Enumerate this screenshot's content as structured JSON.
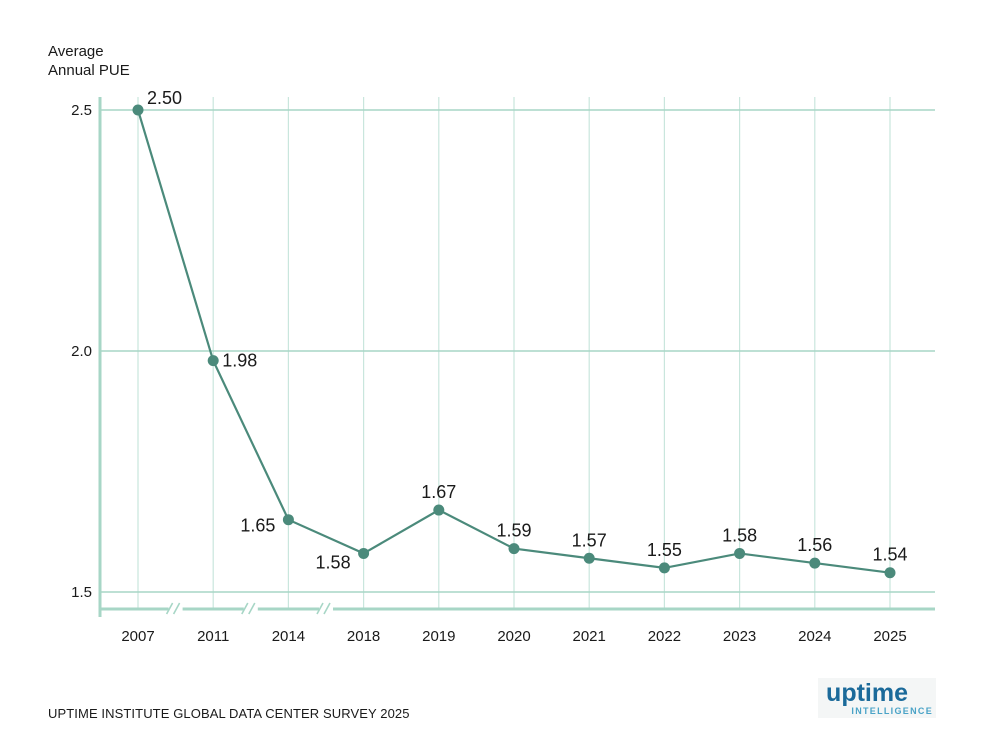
{
  "chart_data": {
    "type": "line",
    "title": "",
    "ylabel": "Average Annual PUE",
    "xlabel": "",
    "categories": [
      "2007",
      "2011",
      "2014",
      "2018",
      "2019",
      "2020",
      "2021",
      "2022",
      "2023",
      "2024",
      "2025"
    ],
    "values": [
      2.5,
      1.98,
      1.65,
      1.58,
      1.67,
      1.59,
      1.57,
      1.55,
      1.58,
      1.56,
      1.54
    ],
    "value_labels": [
      "2.50",
      "1.98",
      "1.65",
      "1.58",
      "1.67",
      "1.59",
      "1.57",
      "1.55",
      "1.58",
      "1.56",
      "1.54"
    ],
    "yticks": [
      "2.5",
      "2.0",
      "1.5"
    ],
    "ylim": [
      1.5,
      2.5
    ],
    "axis_breaks_after": [
      "2007",
      "2011",
      "2014"
    ],
    "grid": true,
    "colors": {
      "line": "#4b8a7b",
      "grid": "#c9e6dd",
      "axis": "#a7d6c6"
    }
  },
  "footer": {
    "source": "UPTIME INSTITUTE GLOBAL DATA CENTER SURVEY 2025"
  },
  "logo": {
    "main": "uptime",
    "sub": "INTELLIGENCE"
  }
}
